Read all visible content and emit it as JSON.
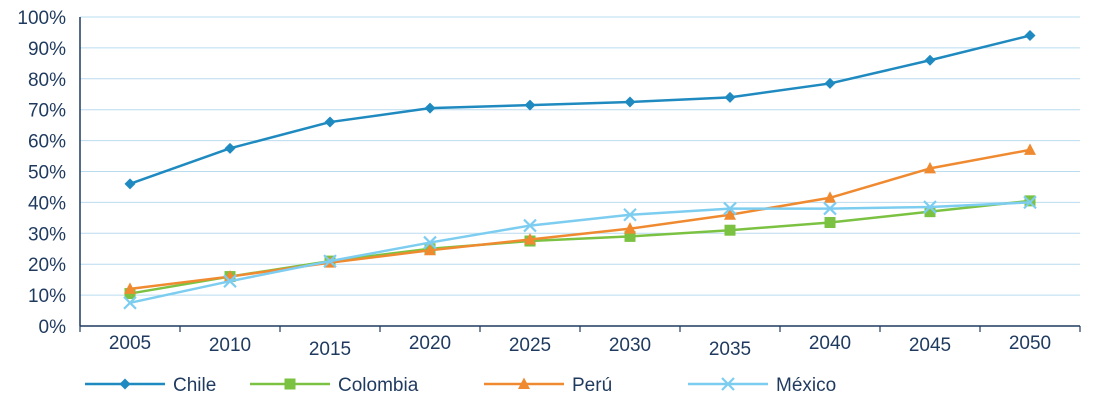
{
  "chart_data": {
    "type": "line",
    "title": "",
    "xlabel": "",
    "ylabel": "",
    "categories": [
      "2005",
      "2010",
      "2015",
      "2020",
      "2025",
      "2030",
      "2035",
      "2040",
      "2045",
      "2050"
    ],
    "yticks": [
      "0%",
      "10%",
      "20%",
      "30%",
      "40%",
      "50%",
      "60%",
      "70%",
      "80%",
      "90%",
      "100%"
    ],
    "ylim": [
      0,
      100
    ],
    "grid": "horizontal",
    "legend_position": "bottom",
    "series": [
      {
        "name": "Chile",
        "color": "#1f8ac0",
        "marker": "diamond",
        "values": [
          46,
          57.5,
          66,
          70.5,
          71.5,
          72.5,
          74,
          78.5,
          86,
          94
        ]
      },
      {
        "name": "Colombia",
        "color": "#7cc242",
        "marker": "square",
        "values": [
          10.5,
          16,
          21,
          25,
          27.5,
          29,
          31,
          33.5,
          37,
          40.5
        ]
      },
      {
        "name": "Perú",
        "color": "#f08a30",
        "marker": "triangle",
        "values": [
          12,
          16,
          20.5,
          24.5,
          28,
          31.5,
          36,
          41.5,
          51,
          57
        ]
      },
      {
        "name": "México",
        "color": "#7dcdf0",
        "marker": "x",
        "values": [
          7.5,
          14.5,
          21,
          27,
          32.5,
          36,
          38,
          38,
          38.5,
          40
        ]
      }
    ]
  }
}
